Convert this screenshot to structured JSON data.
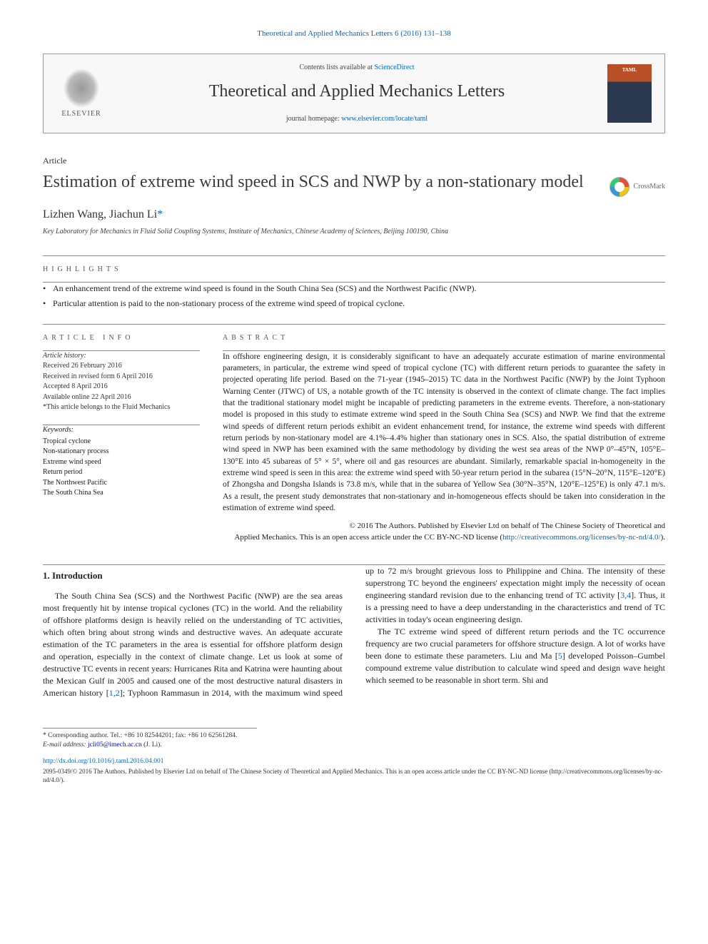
{
  "header_citation": "Theoretical and Applied Mechanics Letters 6 (2016) 131–138",
  "masthead": {
    "contents_prefix": "Contents lists available at ",
    "contents_link": "ScienceDirect",
    "journal_name": "Theoretical and Applied Mechanics Letters",
    "homepage_prefix": "journal homepage: ",
    "homepage_link": "www.elsevier.com/locate/taml",
    "publisher": "ELSEVIER",
    "cover_label": "TAML"
  },
  "article_type": "Article",
  "title": "Estimation of extreme wind speed in SCS and NWP by a non-stationary model",
  "crossmark_label": "CrossMark",
  "authors_html": "Lizhen Wang, Jiachun Li",
  "corr_marker": "*",
  "affiliation": "Key Laboratory for Mechanics in Fluid Solid Coupling Systems, Institute of Mechanics, Chinese Academy of Sciences, Beijing 100190, China",
  "highlights_heading": "HIGHLIGHTS",
  "highlights": [
    "An enhancement trend of the extreme wind speed is found in the South China Sea (SCS) and the Northwest Pacific (NWP).",
    "Particular attention is paid to the non-stationary process of the extreme wind speed of tropical cyclone."
  ],
  "info_heading": "ARTICLE INFO",
  "abstract_heading": "ABSTRACT",
  "history": {
    "label": "Article history:",
    "received": "Received 26 February 2016",
    "revised": "Received in revised form 6 April 2016",
    "accepted": "Accepted 8 April 2016",
    "online": "Available online 22 April 2016",
    "note": "*This article belongs to the Fluid Mechanics"
  },
  "keywords_label": "Keywords:",
  "keywords": [
    "Tropical cyclone",
    "Non-stationary process",
    "Extreme wind speed",
    "Return period",
    "The Northwest Pacific",
    "The South China Sea"
  ],
  "abstract": "In offshore engineering design, it is considerably significant to have an adequately accurate estimation of marine environmental parameters, in particular, the extreme wind speed of tropical cyclone (TC) with different return periods to guarantee the safety in projected operating life period. Based on the 71-year (1945–2015) TC data in the Northwest Pacific (NWP) by the Joint Typhoon Warning Center (JTWC) of US, a notable growth of the TC intensity is observed in the context of climate change. The fact implies that the traditional stationary model might be incapable of predicting parameters in the extreme events. Therefore, a non-stationary model is proposed in this study to estimate extreme wind speed in the South China Sea (SCS) and NWP. We find that the extreme wind speeds of different return periods exhibit an evident enhancement trend, for instance, the extreme wind speeds with different return periods by non-stationary model are 4.1%–4.4% higher than stationary ones in SCS. Also, the spatial distribution of extreme wind speed in NWP has been examined with the same methodology by dividing the west sea areas of the NWP 0°–45°N, 105°E–130°E into 45 subareas of 5° × 5°, where oil and gas resources are abundant. Similarly, remarkable spacial in-homogeneity in the extreme wind speed is seen in this area: the extreme wind speed with 50-year return period in the subarea (15°N–20°N, 115°E–120°E) of Zhongsha and Dongsha Islands is 73.8 m/s, while that in the subarea of Yellow Sea (30°N–35°N, 120°E–125°E) is only 47.1 m/s. As a result, the present study demonstrates that non-stationary and in-homogeneous effects should be taken into consideration in the estimation of extreme wind speed.",
  "copyright": {
    "line1": "© 2016 The Authors. Published by Elsevier Ltd on behalf of The Chinese Society of Theoretical and",
    "line2": "Applied Mechanics. This is an open access article under the CC BY-NC-ND license (",
    "link": "http://creativecommons.org/licenses/by-nc-nd/4.0/",
    "line3": ")."
  },
  "intro_heading": "1. Introduction",
  "intro_para1": "The South China Sea (SCS) and the Northwest Pacific (NWP) are the sea areas most frequently hit by intense tropical cyclones (TC) in the world. And the reliability of offshore platforms design is heavily relied on the understanding of TC activities, which often bring about strong winds and destructive waves. An adequate accurate estimation of the TC parameters in the area is essential for offshore platform design and operation, especially in the context of climate change. Let us look at some of destructive TC events in recent years: Hurricanes Rita and Katrina were haunting about",
  "intro_para2_a": "the Mexican Gulf in 2005 and caused one of the most destructive natural disasters in American history [",
  "ref12": "1,2",
  "intro_para2_b": "]; Typhoon Rammasun in 2014, with the maximum wind speed up to 72 m/s brought grievous loss to Philippine and China. The intensity of these superstrong TC beyond the engineers' expectation might imply the necessity of ocean engineering standard revision due to the enhancing trend of TC activity [",
  "ref34": "3,4",
  "intro_para2_c": "]. Thus, it is a pressing need to have a deep understanding in the characteristics and trend of TC activities in today's ocean engineering design.",
  "intro_para3_a": "The TC extreme wind speed of different return periods and the TC occurrence frequency are two crucial parameters for offshore structure design. A lot of works have been done to estimate these parameters. Liu and Ma [",
  "ref5": "5",
  "intro_para3_b": "] developed Poisson–Gumbel compound extreme value distribution to calculate wind speed and design wave height which seemed to be reasonable in short term. Shi and",
  "footer": {
    "corr_label": "Corresponding author. Tel.: +86 10 82544201; fax: +86 10 62561284.",
    "email_label": "E-mail address:",
    "email": "jcli05@imech.ac.cn",
    "email_name": "(J. Li).",
    "doi": "http://dx.doi.org/10.1016/j.taml.2016.04.001",
    "license": "2095-0349/© 2016 The Authors. Published by Elsevier Ltd on behalf of The Chinese Society of Theoretical and Applied Mechanics. This is an open access article under the CC BY-NC-ND license (http://creativecommons.org/licenses/by-nc-nd/4.0/)."
  }
}
